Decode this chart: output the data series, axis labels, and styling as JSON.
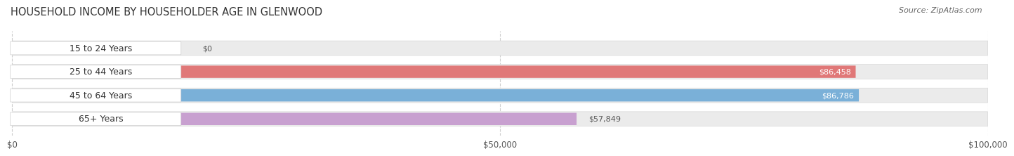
{
  "title": "HOUSEHOLD INCOME BY HOUSEHOLDER AGE IN GLENWOOD",
  "source": "Source: ZipAtlas.com",
  "categories": [
    "15 to 24 Years",
    "25 to 44 Years",
    "45 to 64 Years",
    "65+ Years"
  ],
  "values": [
    0,
    86458,
    86786,
    57849
  ],
  "bar_colors": [
    "#f5c8a0",
    "#e07878",
    "#7ab0d8",
    "#c8a0d0"
  ],
  "track_color": "#ebebeb",
  "label_pill_color": "#ffffff",
  "xmax": 100000,
  "xtick_labels": [
    "$0",
    "$50,000",
    "$100,000"
  ],
  "xtick_vals": [
    0,
    50000,
    100000
  ],
  "value_labels": [
    "$0",
    "$86,458",
    "$86,786",
    "$57,849"
  ],
  "value_label_white": [
    false,
    true,
    true,
    false
  ],
  "title_fontsize": 10.5,
  "source_fontsize": 8,
  "label_fontsize": 9,
  "tick_fontsize": 8.5,
  "value_fontsize": 8,
  "bg_color": "#ffffff",
  "grid_color": "#cccccc"
}
